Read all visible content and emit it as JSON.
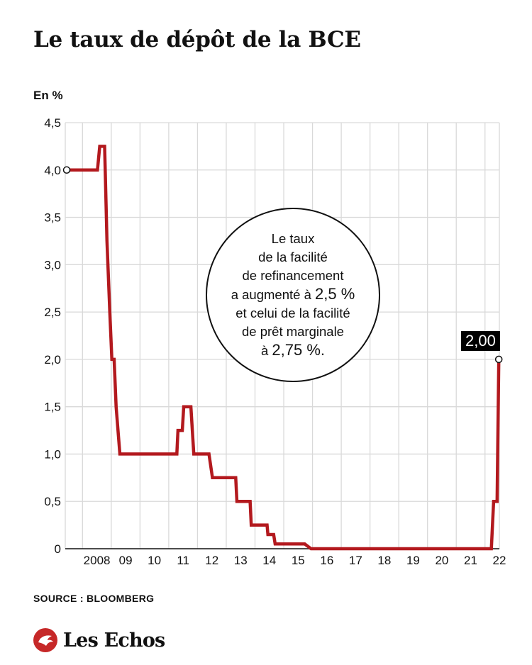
{
  "header": {
    "title": "Le taux de dépôt de la BCE",
    "unit_label": "En %"
  },
  "annotation": {
    "lines": [
      "Le taux",
      "de la facilité",
      "de refinancement",
      "a augmenté à",
      "2,5 %",
      "et celui de la facilité",
      "de prêt marginale",
      "à",
      "2,75 %."
    ]
  },
  "last_value_label": "2,00",
  "footer": {
    "source": "SOURCE : BLOOMBERG",
    "brand": "Les Echos"
  },
  "colors": {
    "line": "#b3191e",
    "grid": "#d9d9d9",
    "text": "#111111",
    "brand_red": "#c62828"
  },
  "chart_data": {
    "type": "line",
    "title": "Le taux de dépôt de la BCE",
    "ylabel": "En %",
    "xlabel": "",
    "ylim": [
      0,
      4.5
    ],
    "xlim": [
      2007.4,
      2022.5
    ],
    "yticks": [
      0,
      0.5,
      1.0,
      1.5,
      2.0,
      2.5,
      3.0,
      3.5,
      4.0,
      4.5
    ],
    "ytick_labels": [
      "0",
      "0,5",
      "1,0",
      "1,5",
      "2,0",
      "2,5",
      "3,0",
      "3,5",
      "4,0",
      "4,5"
    ],
    "xticks": [
      2008,
      2009,
      2010,
      2011,
      2012,
      2013,
      2014,
      2015,
      2016,
      2017,
      2018,
      2019,
      2020,
      2021,
      2022
    ],
    "xtick_labels": [
      "2008",
      "09",
      "10",
      "11",
      "12",
      "13",
      "14",
      "15",
      "16",
      "17",
      "18",
      "19",
      "20",
      "21",
      "22"
    ],
    "grid": true,
    "series": [
      {
        "points": [
          [
            2007.45,
            4.0
          ],
          [
            2008.52,
            4.0
          ],
          [
            2008.6,
            4.25
          ],
          [
            2008.77,
            4.25
          ],
          [
            2008.85,
            3.25
          ],
          [
            2008.95,
            2.5
          ],
          [
            2009.02,
            2.0
          ],
          [
            2009.1,
            2.0
          ],
          [
            2009.17,
            1.5
          ],
          [
            2009.3,
            1.0
          ],
          [
            2011.28,
            1.0
          ],
          [
            2011.32,
            1.25
          ],
          [
            2011.47,
            1.25
          ],
          [
            2011.52,
            1.5
          ],
          [
            2011.77,
            1.5
          ],
          [
            2011.87,
            1.0
          ],
          [
            2011.95,
            1.0
          ],
          [
            2012.4,
            1.0
          ],
          [
            2012.52,
            0.75
          ],
          [
            2013.33,
            0.75
          ],
          [
            2013.37,
            0.5
          ],
          [
            2013.83,
            0.5
          ],
          [
            2013.87,
            0.25
          ],
          [
            2014.42,
            0.25
          ],
          [
            2014.45,
            0.15
          ],
          [
            2014.65,
            0.15
          ],
          [
            2014.7,
            0.05
          ],
          [
            2015.73,
            0.05
          ],
          [
            2015.95,
            0.0
          ],
          [
            2022.22,
            0.0
          ],
          [
            2022.3,
            0.5
          ],
          [
            2022.42,
            0.5
          ],
          [
            2022.48,
            2.0
          ]
        ]
      }
    ],
    "start_marker": {
      "x": 2007.45,
      "y": 4.0
    },
    "end_marker": {
      "x": 2022.48,
      "y": 2.0
    }
  }
}
